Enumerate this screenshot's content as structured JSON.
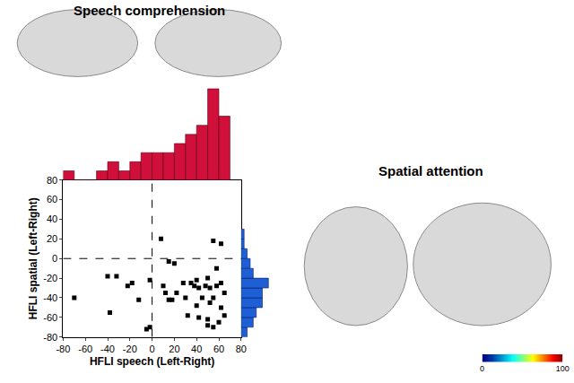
{
  "chart_data": [
    {
      "type": "scatter",
      "x_label": "HFLI speech (Left-Right)",
      "y_label": "HFLI spatial (Left-Right)",
      "x": [
        -70,
        -40,
        -38,
        -32,
        -22,
        -18,
        -12,
        -5,
        -2,
        -2,
        8,
        10,
        12,
        15,
        15,
        18,
        20,
        22,
        28,
        30,
        32,
        35,
        38,
        40,
        40,
        42,
        42,
        45,
        48,
        50,
        50,
        52,
        52,
        55,
        55,
        55,
        58,
        58,
        60,
        62,
        62,
        62,
        65,
        65,
        50
      ],
      "values": [
        -40,
        -18,
        -55,
        -18,
        -28,
        -25,
        -42,
        -72,
        -70,
        -22,
        20,
        -28,
        -35,
        -3,
        -42,
        -42,
        -5,
        -35,
        -25,
        -40,
        -58,
        -25,
        -28,
        -22,
        -48,
        -30,
        -60,
        -40,
        -28,
        -20,
        -62,
        -30,
        -45,
        18,
        -40,
        -70,
        -10,
        -28,
        -65,
        -25,
        15,
        -50,
        -35,
        -58,
        -68
      ],
      "xlim": [
        -80,
        80
      ],
      "ylim": [
        -80,
        80
      ],
      "xticks": [
        -80,
        -60,
        -40,
        -20,
        0,
        20,
        40,
        60,
        80
      ],
      "yticks": [
        -80,
        -60,
        -40,
        -20,
        0,
        20,
        40,
        60,
        80
      ],
      "color": "#000000",
      "marker": "square",
      "reference_lines": [
        {
          "axis": "x",
          "value": 0,
          "line_style": "dashed"
        },
        {
          "axis": "y",
          "value": 0,
          "line_style": "dashed"
        }
      ]
    },
    {
      "type": "histogram",
      "bins": [
        -80,
        -70,
        -60,
        -50,
        -40,
        -30,
        -20,
        -10,
        0,
        10,
        20,
        30,
        40,
        50,
        60,
        70
      ],
      "counts": [
        1,
        0,
        0,
        1,
        2,
        1,
        2,
        3,
        3,
        3,
        4,
        5,
        6,
        10,
        7
      ],
      "color": "#d0103a",
      "tick_labels": false
    },
    {
      "type": "histogram",
      "orientation": "horizontal",
      "bins": [
        -80,
        -70,
        -60,
        -50,
        -40,
        -30,
        -20,
        -10,
        0,
        10,
        20,
        30
      ],
      "counts": [
        2,
        4,
        5,
        7,
        7,
        9,
        4,
        3,
        2,
        1,
        1
      ],
      "color": "#1f5fd6",
      "tick_labels": false
    }
  ],
  "figure_labels": [
    "Speech comprehension",
    "Spatial attention"
  ],
  "color_scale": {
    "range": [
      0,
      100
    ],
    "ticks": [
      0,
      100
    ]
  }
}
